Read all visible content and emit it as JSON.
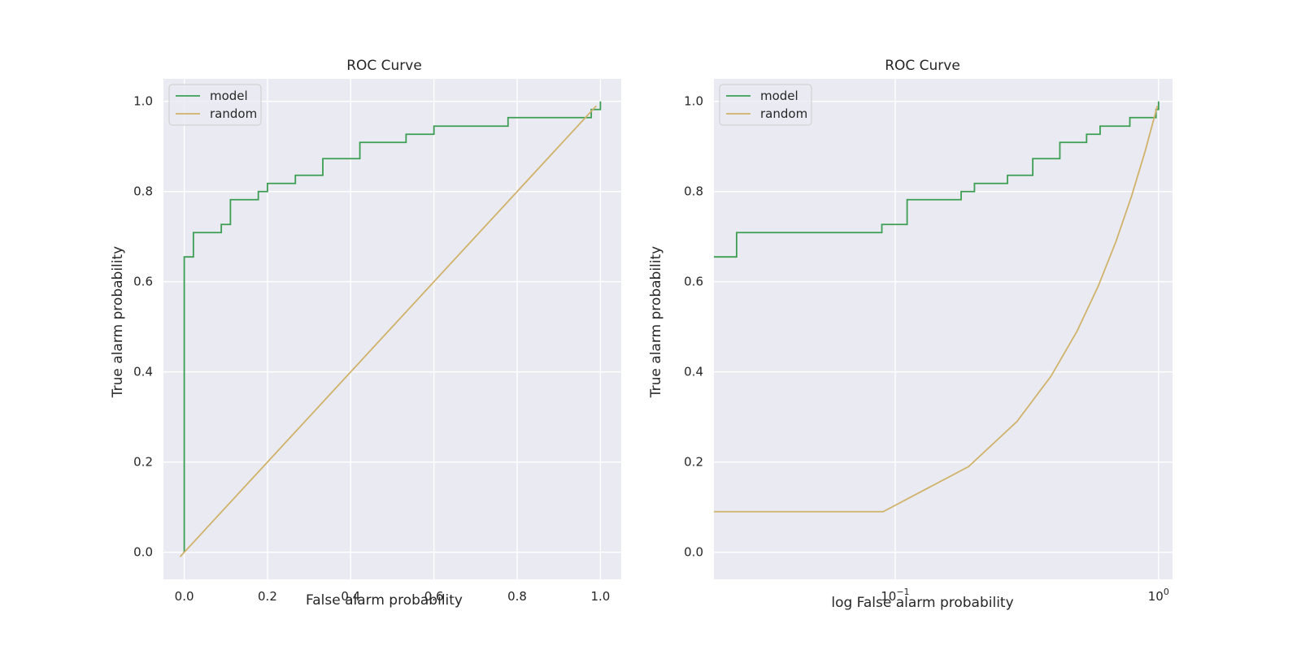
{
  "chart_data": [
    {
      "type": "line",
      "title": "ROC Curve",
      "xlabel": "False alarm probability",
      "ylabel": "True alarm probability",
      "xscale": "linear",
      "xlim": [
        -0.05,
        1.05
      ],
      "ylim": [
        -0.06,
        1.05
      ],
      "xticks": [
        0.0,
        0.2,
        0.4,
        0.6,
        0.8,
        1.0
      ],
      "xtick_labels": [
        "0.0",
        "0.2",
        "0.4",
        "0.6",
        "0.8",
        "1.0"
      ],
      "yticks": [
        0.0,
        0.2,
        0.4,
        0.6,
        0.8,
        1.0
      ],
      "ytick_labels": [
        "0.0",
        "0.2",
        "0.4",
        "0.6",
        "0.8",
        "1.0"
      ],
      "grid": true,
      "legend_position": "top-left",
      "background_color": "#eaeaf2",
      "series": [
        {
          "name": "model",
          "color": "#3c9e53",
          "step": true,
          "x": [
            0.0,
            0.0,
            0.022,
            0.022,
            0.089,
            0.089,
            0.111,
            0.111,
            0.178,
            0.178,
            0.2,
            0.2,
            0.267,
            0.267,
            0.333,
            0.333,
            0.422,
            0.422,
            0.533,
            0.533,
            0.6,
            0.6,
            0.778,
            0.778,
            0.978,
            0.978,
            1.0,
            1.0
          ],
          "y": [
            0.0,
            0.655,
            0.655,
            0.709,
            0.709,
            0.727,
            0.727,
            0.782,
            0.782,
            0.8,
            0.8,
            0.818,
            0.818,
            0.836,
            0.836,
            0.873,
            0.873,
            0.909,
            0.909,
            0.927,
            0.927,
            0.945,
            0.945,
            0.964,
            0.964,
            0.982,
            0.982,
            1.0
          ]
        },
        {
          "name": "random",
          "color": "#d0b26a",
          "step": false,
          "x": [
            -0.01,
            0.09,
            0.19,
            0.29,
            0.39,
            0.49,
            0.59,
            0.69,
            0.79,
            0.89,
            0.99
          ],
          "y": [
            -0.01,
            0.09,
            0.19,
            0.29,
            0.39,
            0.49,
            0.59,
            0.69,
            0.79,
            0.89,
            0.99
          ]
        }
      ]
    },
    {
      "type": "line",
      "title": "ROC Curve",
      "xlabel": "log False alarm probability",
      "ylabel": "True alarm probability",
      "xscale": "log",
      "xlim": [
        0.0205,
        1.13
      ],
      "ylim": [
        -0.06,
        1.05
      ],
      "xticks": [
        0.1,
        1.0
      ],
      "xtick_labels": [
        {
          "base": "10",
          "exp": "−1"
        },
        {
          "base": "10",
          "exp": "0"
        }
      ],
      "yticks": [
        0.0,
        0.2,
        0.4,
        0.6,
        0.8,
        1.0
      ],
      "ytick_labels": [
        "0.0",
        "0.2",
        "0.4",
        "0.6",
        "0.8",
        "1.0"
      ],
      "grid": true,
      "legend_position": "top-left",
      "background_color": "#eaeaf2",
      "series": [
        {
          "name": "model",
          "color": "#3c9e53",
          "step": true,
          "x": [
            0.0205,
            0.025,
            0.025,
            0.089,
            0.089,
            0.111,
            0.111,
            0.178,
            0.178,
            0.2,
            0.2,
            0.267,
            0.267,
            0.333,
            0.333,
            0.422,
            0.422,
            0.533,
            0.533,
            0.6,
            0.6,
            0.778,
            0.778,
            0.978,
            0.978,
            1.0,
            1.0
          ],
          "y": [
            0.655,
            0.655,
            0.709,
            0.709,
            0.727,
            0.727,
            0.782,
            0.782,
            0.8,
            0.8,
            0.818,
            0.818,
            0.836,
            0.836,
            0.873,
            0.873,
            0.909,
            0.909,
            0.927,
            0.927,
            0.945,
            0.945,
            0.964,
            0.964,
            0.982,
            0.982,
            1.0
          ]
        },
        {
          "name": "random",
          "color": "#d0b26a",
          "step": false,
          "x": [
            0.0205,
            0.09,
            0.19,
            0.29,
            0.39,
            0.49,
            0.59,
            0.69,
            0.79,
            0.89,
            0.99
          ],
          "y": [
            0.09,
            0.09,
            0.19,
            0.29,
            0.39,
            0.49,
            0.59,
            0.69,
            0.79,
            0.89,
            0.99
          ]
        }
      ]
    }
  ]
}
